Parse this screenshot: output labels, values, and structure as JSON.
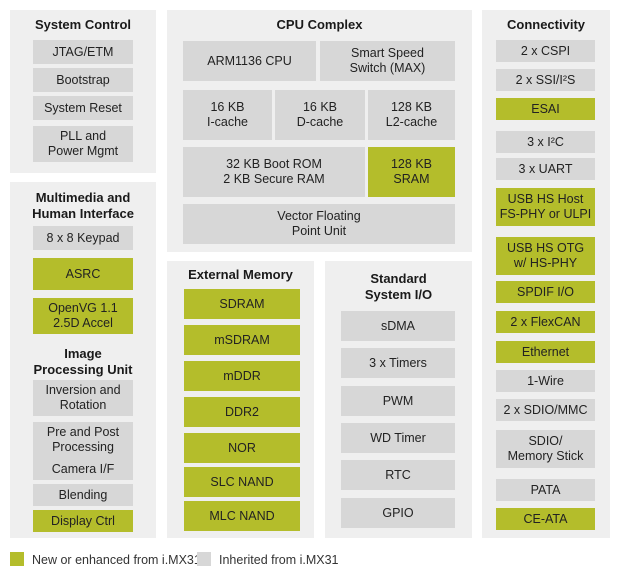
{
  "colors": {
    "inherited": "#d7d7d7",
    "new": "#b4bd2b",
    "panel": "#efefef"
  },
  "system_control": {
    "title": "System Control",
    "blocks": [
      {
        "label": "JTAG/ETM",
        "kind": "inherited"
      },
      {
        "label": "Bootstrap",
        "kind": "inherited"
      },
      {
        "label": "System Reset",
        "kind": "inherited"
      },
      {
        "label": "PLL and\nPower Mgmt",
        "kind": "inherited"
      }
    ]
  },
  "multimedia": {
    "title": "Multimedia and\nHuman Interface",
    "blocks": [
      {
        "label": "8 x 8 Keypad",
        "kind": "inherited"
      },
      {
        "label": "ASRC",
        "kind": "new"
      },
      {
        "label": "OpenVG 1.1\n2.5D Accel",
        "kind": "new"
      }
    ]
  },
  "ipu": {
    "title": "Image\nProcessing Unit",
    "blocks": [
      {
        "label": "Inversion and\nRotation",
        "kind": "inherited"
      },
      {
        "label": "Pre and Post\nProcessing",
        "kind": "inherited"
      },
      {
        "label": "Camera I/F",
        "kind": "inherited"
      },
      {
        "label": "Blending",
        "kind": "inherited"
      },
      {
        "label": "Display Ctrl",
        "kind": "new"
      }
    ]
  },
  "cpu": {
    "title": "CPU Complex",
    "blocks": [
      {
        "label": "ARM1136 CPU",
        "kind": "inherited"
      },
      {
        "label": "Smart Speed\nSwitch (MAX)",
        "kind": "inherited"
      },
      {
        "label": "16 KB\nI-cache",
        "kind": "inherited"
      },
      {
        "label": "16 KB\nD-cache",
        "kind": "inherited"
      },
      {
        "label": "128 KB\nL2-cache",
        "kind": "inherited"
      },
      {
        "label": "32 KB Boot ROM\n2 KB Secure RAM",
        "kind": "inherited"
      },
      {
        "label": "128 KB\nSRAM",
        "kind": "new"
      },
      {
        "label": "Vector Floating\nPoint Unit",
        "kind": "inherited"
      }
    ]
  },
  "ext_mem": {
    "title": "External Memory",
    "blocks": [
      {
        "label": "SDRAM",
        "kind": "new"
      },
      {
        "label": "mSDRAM",
        "kind": "new"
      },
      {
        "label": "mDDR",
        "kind": "new"
      },
      {
        "label": "DDR2",
        "kind": "new"
      },
      {
        "label": "NOR",
        "kind": "new"
      },
      {
        "label": "SLC NAND",
        "kind": "new"
      },
      {
        "label": "MLC NAND",
        "kind": "new"
      }
    ]
  },
  "std_io": {
    "title": "Standard\nSystem I/O",
    "blocks": [
      {
        "label": "sDMA",
        "kind": "inherited"
      },
      {
        "label": "3 x Timers",
        "kind": "inherited"
      },
      {
        "label": "PWM",
        "kind": "inherited"
      },
      {
        "label": "WD Timer",
        "kind": "inherited"
      },
      {
        "label": "RTC",
        "kind": "inherited"
      },
      {
        "label": "GPIO",
        "kind": "inherited"
      }
    ]
  },
  "connectivity": {
    "title": "Connectivity",
    "blocks": [
      {
        "label": "2 x CSPI",
        "kind": "inherited"
      },
      {
        "label": "2 x SSI/I²S",
        "kind": "inherited"
      },
      {
        "label": "ESAI",
        "kind": "new"
      },
      {
        "label": "3 x I²C",
        "kind": "inherited"
      },
      {
        "label": "3 x UART",
        "kind": "inherited"
      },
      {
        "label": "USB HS Host\nFS-PHY or ULPI",
        "kind": "new"
      },
      {
        "label": "USB HS OTG\nw/ HS-PHY",
        "kind": "new"
      },
      {
        "label": "SPDIF I/O",
        "kind": "new"
      },
      {
        "label": "2 x FlexCAN",
        "kind": "new"
      },
      {
        "label": "Ethernet",
        "kind": "new"
      },
      {
        "label": "1-Wire",
        "kind": "inherited"
      },
      {
        "label": "2 x SDIO/MMC",
        "kind": "inherited"
      },
      {
        "label": "SDIO/\nMemory Stick",
        "kind": "inherited"
      },
      {
        "label": "PATA",
        "kind": "inherited"
      },
      {
        "label": "CE-ATA",
        "kind": "new"
      }
    ]
  },
  "legend": {
    "new_label": "New or enhanced from i.MX31",
    "inherited_label": "Inherited from i.MX31"
  }
}
